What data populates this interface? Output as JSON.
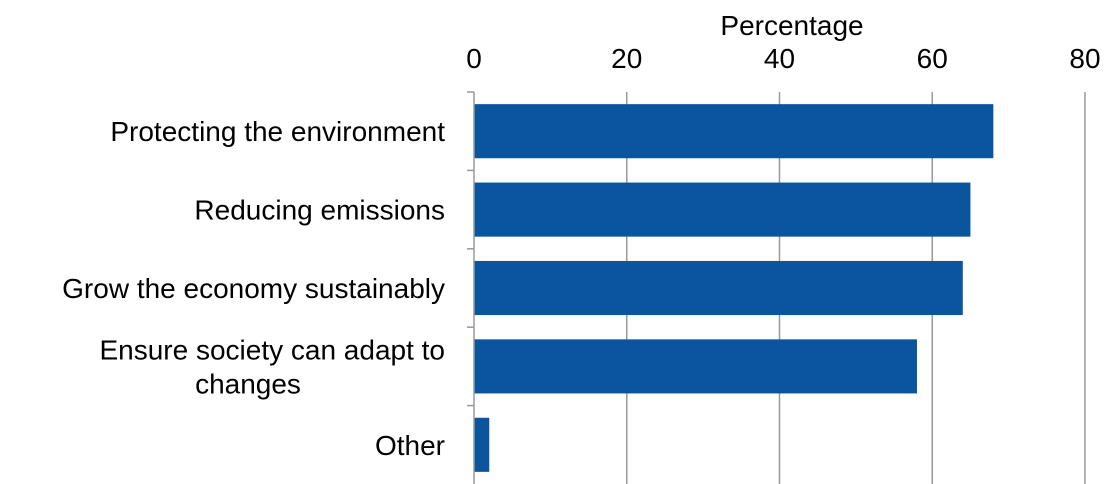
{
  "chart_data": {
    "type": "bar",
    "orientation": "horizontal",
    "title": "",
    "xlabel": "Percentage",
    "xlabel_position": "top",
    "ylabel": "",
    "xlim": [
      0,
      80
    ],
    "xticks": [
      0,
      20,
      40,
      60,
      80
    ],
    "xtick_labels": [
      "0",
      "20",
      "40",
      "60",
      "80"
    ],
    "categories": [
      "Protecting the environment",
      "Reducing emissions",
      "Grow the economy sustainably",
      "Ensure society can adapt to changes",
      "Other"
    ],
    "category_label_lines": [
      [
        "Protecting the environment"
      ],
      [
        "Reducing emissions"
      ],
      [
        "Grow the economy sustainably"
      ],
      [
        "Ensure society can adapt to",
        "changes"
      ],
      [
        "Other"
      ]
    ],
    "values": [
      68,
      65,
      64,
      58,
      2
    ],
    "bar_color": "#0b549e",
    "grid": "vertical",
    "legend": "none"
  }
}
